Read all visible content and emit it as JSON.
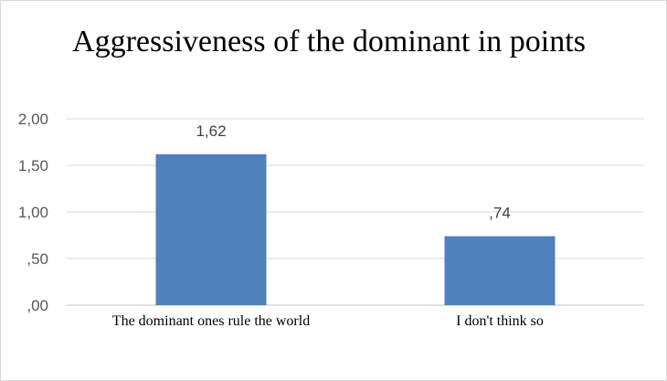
{
  "chart_data": {
    "type": "bar",
    "title": "Aggressiveness of the dominant in points",
    "categories": [
      "The dominant ones rule the world",
      "I don't think so"
    ],
    "values": [
      1.62,
      0.74
    ],
    "data_labels": [
      "1,62",
      ",74"
    ],
    "y_ticks": [
      0,
      0.5,
      1.0,
      1.5,
      2.0
    ],
    "y_tick_labels": [
      ",00",
      ",50",
      "1,00",
      "1,50",
      "2,00"
    ],
    "ylim": [
      0,
      2.0
    ],
    "grid": true,
    "bar_color": "#4F81BD",
    "gridline_color": "#D9D9D9"
  }
}
